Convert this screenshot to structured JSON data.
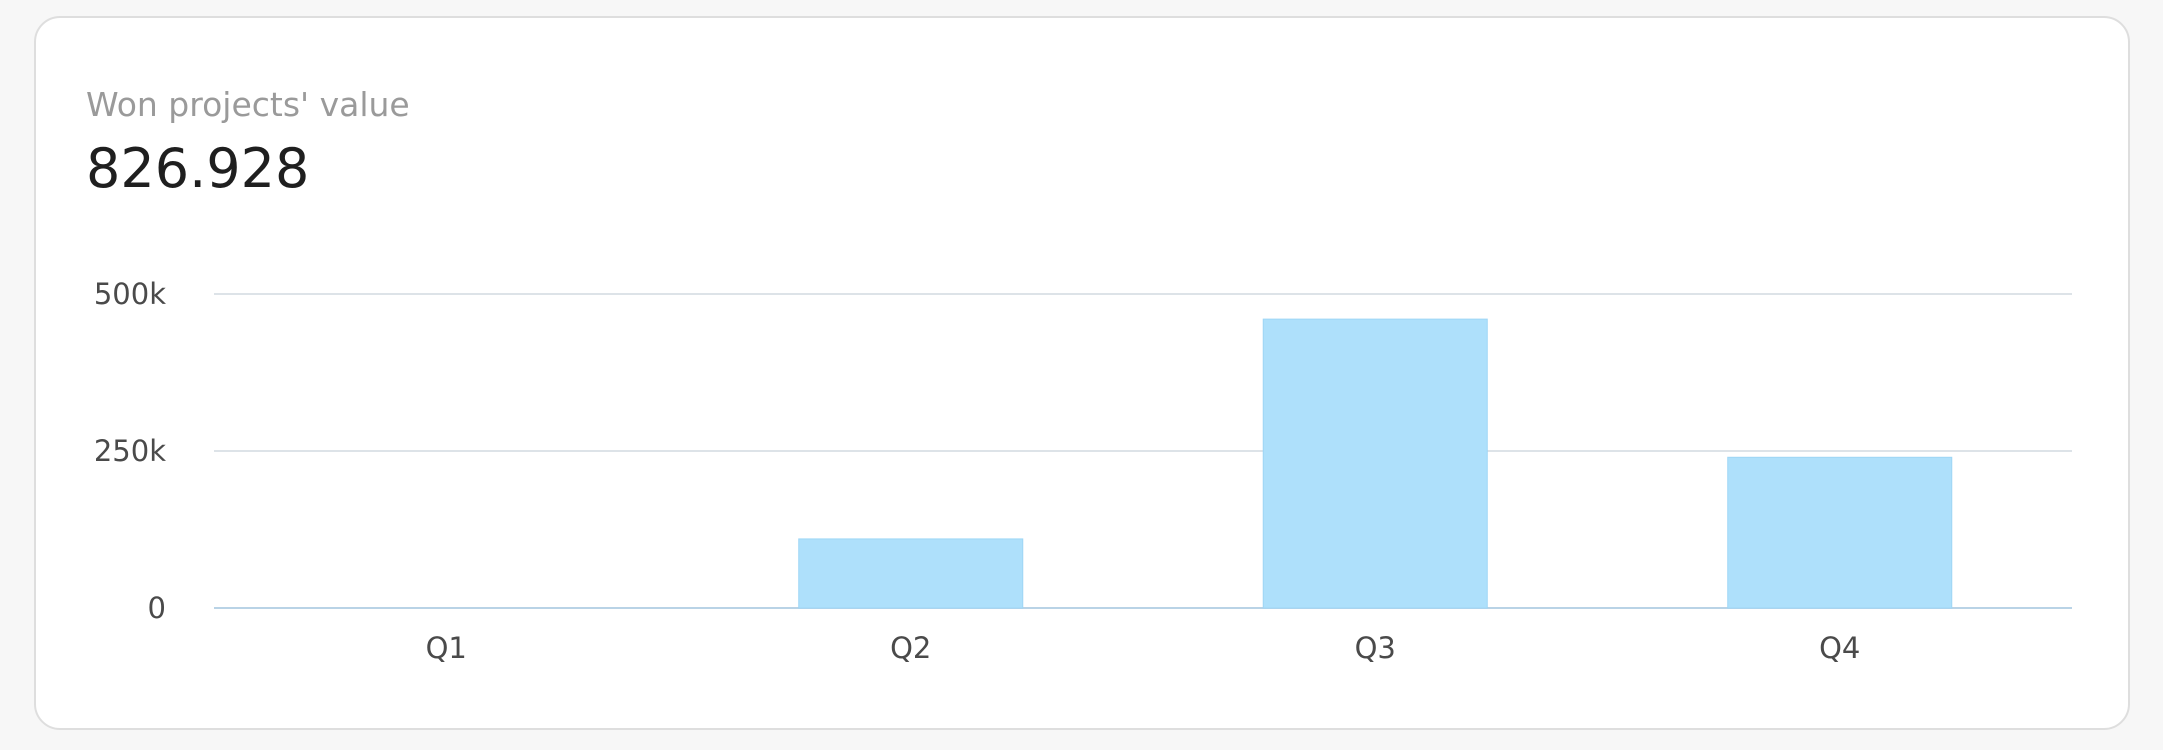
{
  "card": {
    "title": "Won projects' value",
    "value": "826.928"
  },
  "chart_data": {
    "type": "bar",
    "categories": [
      "Q1",
      "Q2",
      "Q3",
      "Q4"
    ],
    "values": [
      0,
      110000,
      460000,
      240000
    ],
    "ylim": [
      0,
      500000
    ],
    "yticks": [
      0,
      250000,
      500000
    ],
    "ytick_labels": [
      "0",
      "250k",
      "500k"
    ],
    "grid": true,
    "legend": "none",
    "title": "",
    "xlabel": "",
    "ylabel": ""
  },
  "colors": {
    "bar": "#aee0fb",
    "bar_edge": "#9ed6f5",
    "grid": "#dde3e8",
    "baseline": "#b9d3e6"
  }
}
